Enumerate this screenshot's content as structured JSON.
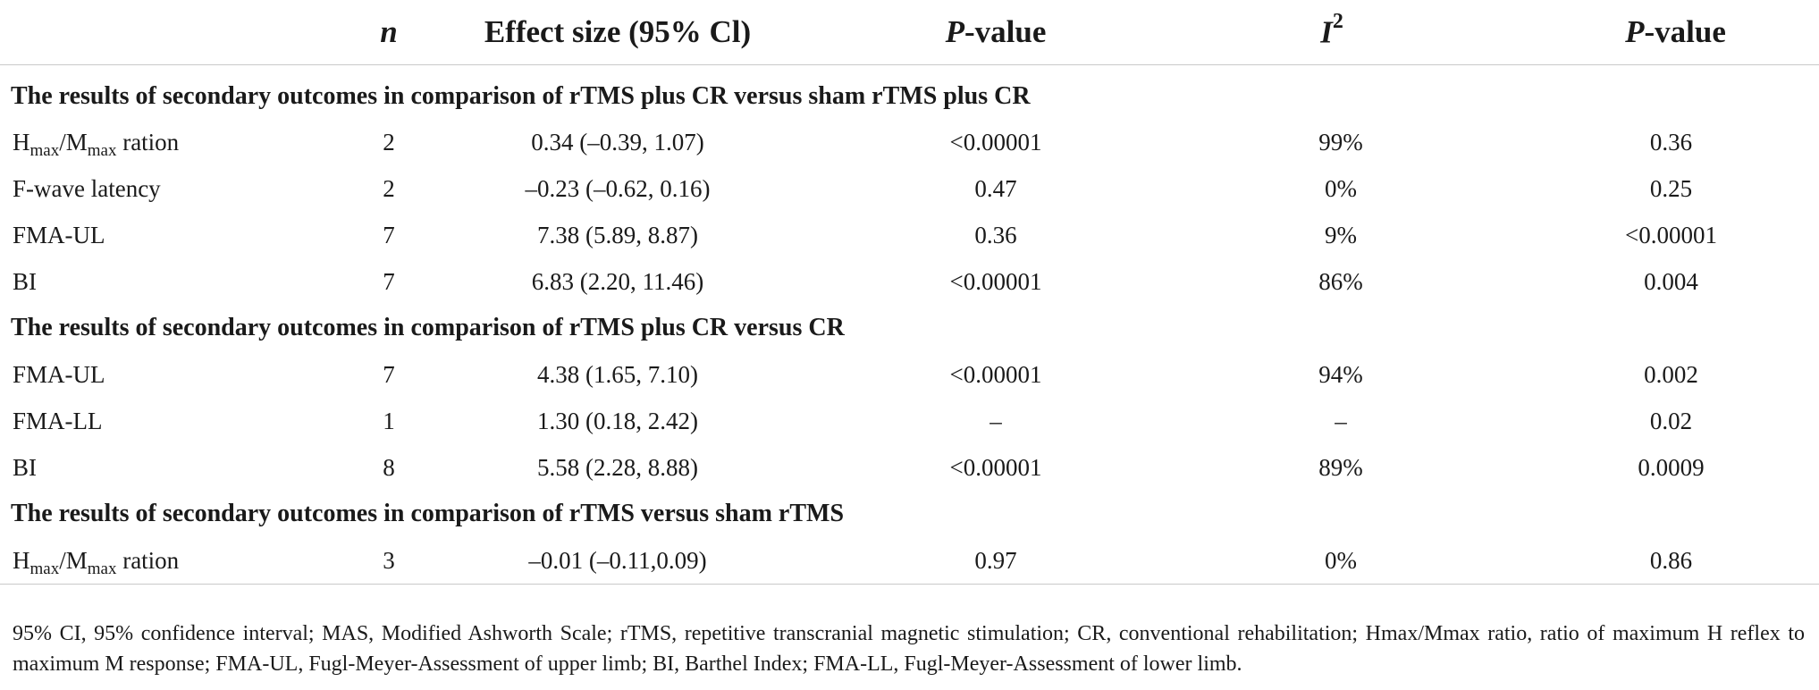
{
  "table": {
    "headers": {
      "col0": "",
      "n": "n",
      "effect_size": "Effect size (95% Cl)",
      "p_value_1_italic": "P",
      "p_value_1_rest": "-value",
      "i2_base": "I",
      "i2_sup": "2",
      "p_value_2_italic": "P",
      "p_value_2_rest": "-value"
    },
    "sections": [
      {
        "title": "The results of secondary outcomes in comparison of rTMS plus CR versus sham rTMS plus CR",
        "rows": [
          {
            "label_main": "H",
            "label_sub1": "max",
            "label_mid": "/M",
            "label_sub2": "max",
            "label_end": " ration",
            "n": "2",
            "effect_size": "0.34 (–0.39, 1.07)",
            "p_value": "<0.00001",
            "i2": "99%",
            "p_value_2": "0.36"
          },
          {
            "label": "F-wave latency",
            "n": "2",
            "effect_size": "–0.23 (–0.62, 0.16)",
            "p_value": "0.47",
            "i2": "0%",
            "p_value_2": "0.25"
          },
          {
            "label": "FMA-UL",
            "n": "7",
            "effect_size": "7.38 (5.89, 8.87)",
            "p_value": "0.36",
            "i2": "9%",
            "p_value_2": "<0.00001"
          },
          {
            "label": "BI",
            "n": "7",
            "effect_size": "6.83 (2.20, 11.46)",
            "p_value": "<0.00001",
            "i2": "86%",
            "p_value_2": "0.004"
          }
        ]
      },
      {
        "title": "The results of secondary outcomes in comparison of rTMS plus CR versus CR",
        "rows": [
          {
            "label": "FMA-UL",
            "n": "7",
            "effect_size": "4.38 (1.65, 7.10)",
            "p_value": "<0.00001",
            "i2": "94%",
            "p_value_2": "0.002"
          },
          {
            "label": "FMA-LL",
            "n": "1",
            "effect_size": "1.30 (0.18, 2.42)",
            "p_value": "–",
            "i2": "–",
            "p_value_2": "0.02"
          },
          {
            "label": "BI",
            "n": "8",
            "effect_size": "5.58 (2.28, 8.88)",
            "p_value": "<0.00001",
            "i2": "89%",
            "p_value_2": "0.0009"
          }
        ]
      },
      {
        "title": "The results of secondary outcomes in comparison of rTMS versus sham rTMS",
        "rows": [
          {
            "label_main": "H",
            "label_sub1": "max",
            "label_mid": "/M",
            "label_sub2": "max",
            "label_end": " ration",
            "n": "3",
            "effect_size": "–0.01 (–0.11,0.09)",
            "p_value": "0.97",
            "i2": "0%",
            "p_value_2": "0.86"
          }
        ]
      }
    ],
    "footnote": "95% CI, 95% confidence interval; MAS, Modified Ashworth Scale; rTMS, repetitive transcranial magnetic stimulation; CR, conventional rehabilitation; Hmax/Mmax ratio, ratio of maximum H reflex to maximum M response; FMA-UL, Fugl-Meyer-Assessment of upper limb; BI, Barthel Index; FMA-LL, Fugl-Meyer-Assessment of lower limb."
  }
}
